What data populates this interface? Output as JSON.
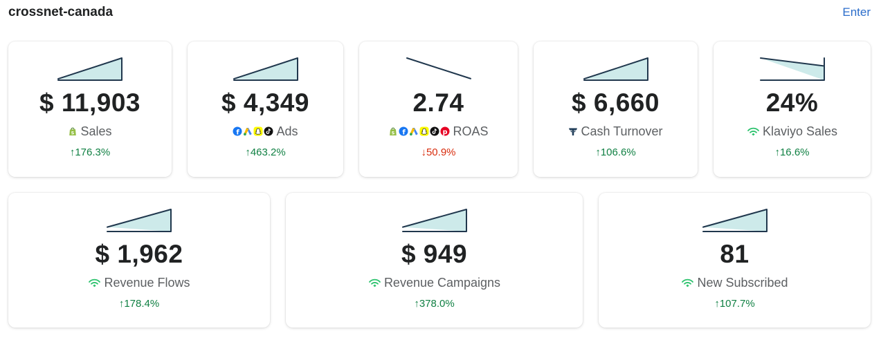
{
  "header": {
    "title": "crossnet-canada",
    "enter_label": "Enter"
  },
  "cards": [
    {
      "value": "$ 11,903",
      "label": "Sales",
      "change": "↑176.3%",
      "direction": "up",
      "sources": [
        "shopify-icon"
      ]
    },
    {
      "value": "$ 4,349",
      "label": "Ads",
      "change": "↑463.2%",
      "direction": "up",
      "sources": [
        "facebook-icon",
        "google-ads-icon",
        "snapchat-icon",
        "tiktok-icon"
      ]
    },
    {
      "value": "2.74",
      "label": "ROAS",
      "change": "↓50.9%",
      "direction": "down",
      "sources": [
        "shopify-icon",
        "facebook-icon",
        "google-ads-icon",
        "snapchat-icon",
        "tiktok-icon",
        "pinterest-icon"
      ]
    },
    {
      "value": "$ 6,660",
      "label": "Cash Turnover",
      "change": "↑106.6%",
      "direction": "up",
      "sources": [
        "turnover-icon"
      ]
    },
    {
      "value": "24%",
      "label": "Klaviyo Sales",
      "change": "↑16.6%",
      "direction": "up",
      "sources": [
        "klaviyo-icon"
      ]
    },
    {
      "value": "$ 1,962",
      "label": "Revenue Flows",
      "change": "↑178.4%",
      "direction": "up",
      "sources": [
        "klaviyo-icon"
      ]
    },
    {
      "value": "$ 949",
      "label": "Revenue Campaigns",
      "change": "↑378.0%",
      "direction": "up",
      "sources": [
        "klaviyo-icon"
      ]
    },
    {
      "value": "81",
      "label": "New Subscribed",
      "change": "↑107.7%",
      "direction": "up",
      "sources": [
        "klaviyo-icon"
      ]
    }
  ],
  "colors": {
    "up": "#108043",
    "down": "#d82c0d",
    "spark_fill": "#cdeaea",
    "spark_line": "#20374d",
    "link": "#2c6ecb"
  },
  "chart_data": [
    {
      "type": "area",
      "title": "Sales",
      "trend": [
        0.06,
        1.0
      ],
      "filled": true
    },
    {
      "type": "area",
      "title": "Ads",
      "trend": [
        0.06,
        1.0
      ],
      "filled": true
    },
    {
      "type": "line",
      "title": "ROAS",
      "trend": [
        1.0,
        0.07
      ],
      "filled": false
    },
    {
      "type": "area",
      "title": "Cash Turnover",
      "trend": [
        0.06,
        1.0
      ],
      "filled": true
    },
    {
      "type": "area",
      "title": "Klaviyo Sales",
      "trend": [
        1.0,
        0.64
      ],
      "filled": true
    },
    {
      "type": "area",
      "title": "Revenue Flows",
      "trend": [
        0.2,
        1.0
      ],
      "filled": true
    },
    {
      "type": "area",
      "title": "Revenue Campaigns",
      "trend": [
        0.2,
        1.0
      ],
      "filled": true
    },
    {
      "type": "area",
      "title": "New Subscribed",
      "trend": [
        0.2,
        1.0
      ],
      "filled": true
    }
  ]
}
